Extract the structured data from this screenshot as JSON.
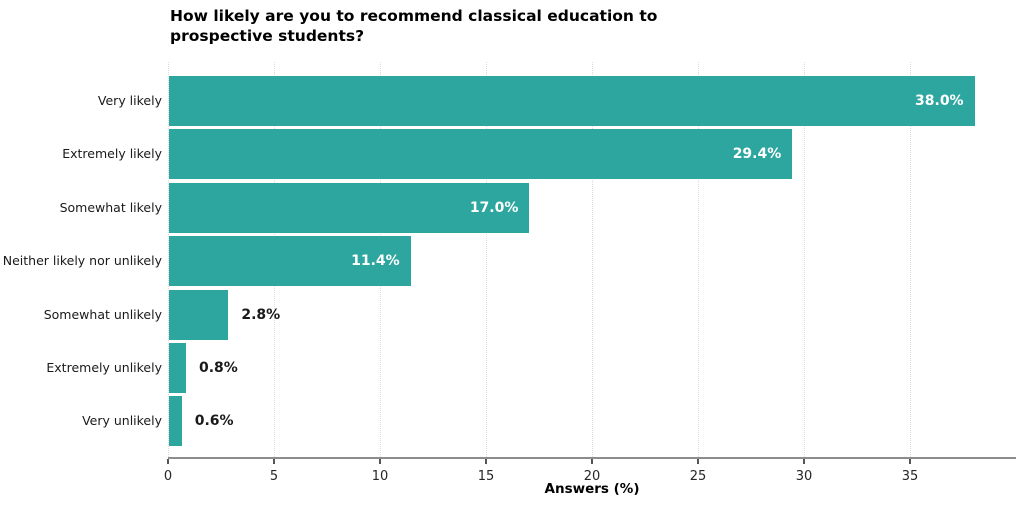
{
  "title": {
    "lines": [
      "How likely are you to recommend classical education to",
      "prospective students?"
    ]
  },
  "chart_data": {
    "type": "bar",
    "orientation": "horizontal",
    "title": "How likely are you to recommend classical education to prospective students?",
    "categories": [
      "Very likely",
      "Extremely likely",
      "Somewhat likely",
      "Neither likely nor unlikely",
      "Somewhat unlikely",
      "Extremely unlikely",
      "Very unlikely"
    ],
    "values": [
      38.0,
      29.4,
      17.0,
      11.4,
      2.8,
      0.8,
      0.6
    ],
    "value_labels": [
      "38.0%",
      "29.4%",
      "17.0%",
      "11.4%",
      "2.8%",
      "0.8%",
      "0.6%"
    ],
    "xlabel": "Answers (%)",
    "ylabel": "",
    "xlim": [
      0,
      40
    ],
    "xticks": [
      0,
      5,
      10,
      15,
      20,
      25,
      30,
      35
    ],
    "grid": "vertical-dotted",
    "legend": "none",
    "colors": {
      "bar": "#2DA6A0",
      "value_label_inside": "#ffffff",
      "value_label_outside": "#1a1a1a",
      "axis_line": "#8c8c8c",
      "gridline": "#dcdcdc",
      "tick_label": "#262626",
      "title": "#000000"
    }
  }
}
